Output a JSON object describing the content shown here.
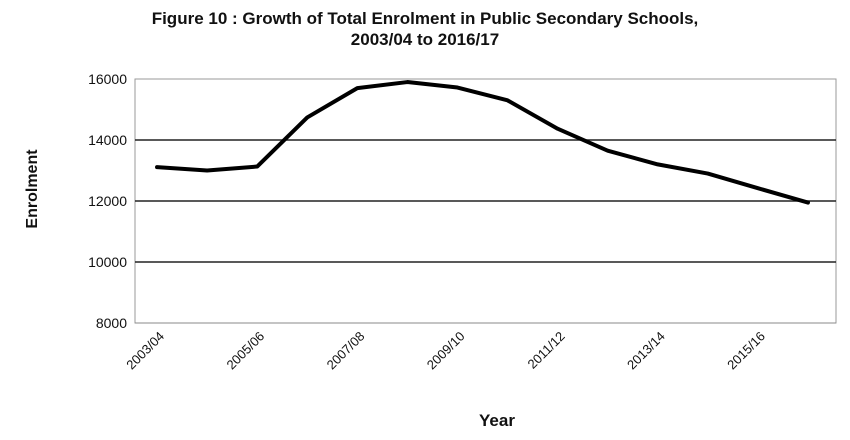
{
  "chart_data": {
    "type": "line",
    "title": "Figure 10 : Growth of Total  Enrolment in Public Secondary Schools,",
    "subtitle": "2003/04 to 2016/17",
    "xlabel": "Year",
    "ylabel": "Enrolment",
    "ylim": [
      8000,
      16000
    ],
    "yticks": [
      "16000",
      "14000",
      "12000",
      "10000",
      "8000"
    ],
    "ytick_values": [
      16000,
      14000,
      12000,
      10000,
      8000
    ],
    "grid": true,
    "categories": [
      "2003/04",
      "2004/05",
      "2005/06",
      "2006/07",
      "2007/08",
      "2008/09",
      "2009/10",
      "2010/11",
      "2011/12",
      "2012/13",
      "2013/14",
      "2014/15",
      "2015/16",
      "2016/17"
    ],
    "xtick_labels": [
      "2003/04",
      "2005/06",
      "2007/08",
      "2009/10",
      "2011/12",
      "2013/14",
      "2015/16"
    ],
    "series": [
      {
        "name": "Enrolment",
        "color": "#000000",
        "values": [
          13110,
          13000,
          13130,
          14740,
          15700,
          15900,
          15720,
          15300,
          14370,
          13650,
          13200,
          12900,
          12420,
          11950
        ]
      }
    ]
  }
}
